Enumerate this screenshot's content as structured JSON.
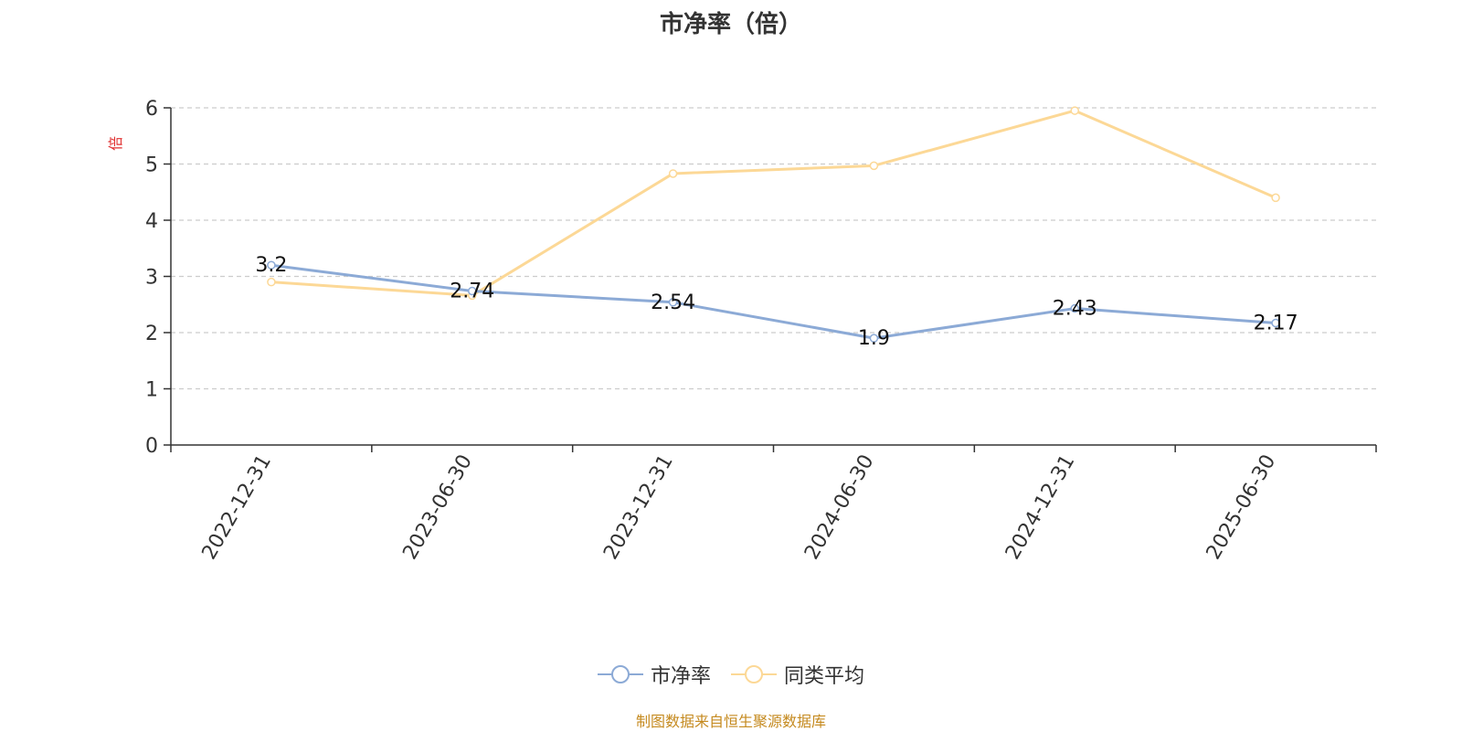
{
  "title": "市净率（倍）",
  "source_note": "制图数据来自恒生聚源数据库",
  "chart_data": {
    "type": "line",
    "title": "市净率（倍）",
    "ylabel": "倍",
    "xlabel": "",
    "ylim": [
      0,
      6
    ],
    "yticks": [
      0,
      1,
      2,
      3,
      4,
      5,
      6
    ],
    "categories": [
      "2022-12-31",
      "2023-06-30",
      "2023-12-31",
      "2024-06-30",
      "2024-12-31",
      "2025-06-30"
    ],
    "grid": true,
    "legend_position": "bottom",
    "series": [
      {
        "name": "市净率",
        "values": [
          3.2,
          2.74,
          2.54,
          1.9,
          2.43,
          2.17
        ],
        "show_labels": true,
        "color": "#8caad6"
      },
      {
        "name": "同类平均",
        "values": [
          2.9,
          2.66,
          4.83,
          4.97,
          5.95,
          4.4
        ],
        "show_labels": false,
        "color": "#fcd896"
      }
    ]
  }
}
